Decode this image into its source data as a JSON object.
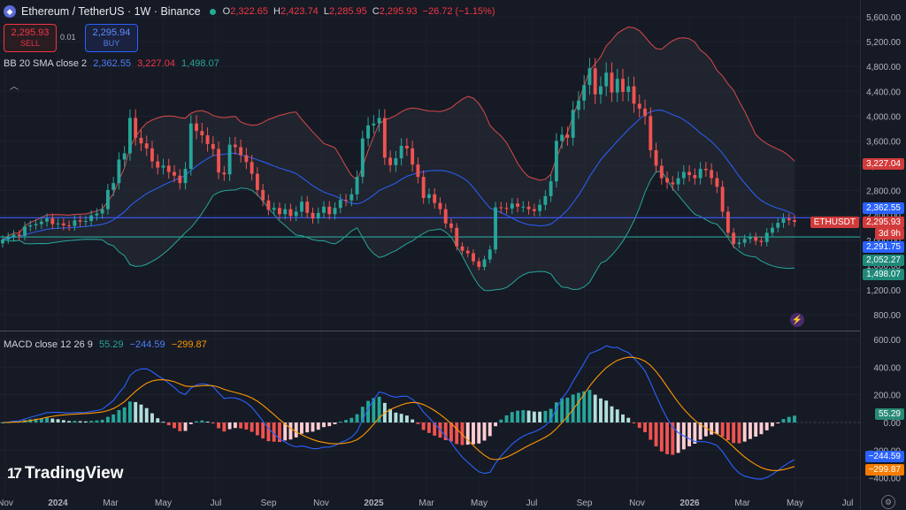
{
  "header": {
    "symbol_title": "Ethereum / TetherUS · 1W · Binance",
    "ohlc": [
      {
        "k": "O",
        "v": "2,322.65"
      },
      {
        "k": "H",
        "v": "2,423.74"
      },
      {
        "k": "L",
        "v": "2,285.95"
      },
      {
        "k": "C",
        "v": "2,295.93"
      }
    ],
    "change": "−26.72 (−1.15%)"
  },
  "trade": {
    "sell_price": "2,295.93",
    "sell_label": "SELL",
    "spread": "0.01",
    "buy_price": "2,295.94",
    "buy_label": "BUY"
  },
  "indicators": {
    "bb_name": "BB 20 SMA close 2",
    "bb_basis": "2,362.55",
    "bb_upper": "3,227.04",
    "bb_lower": "1,498.07",
    "macd_name": "MACD close 12 26 9",
    "macd_hist": "55.29",
    "macd_line": "−244.59",
    "macd_signal": "−299.87"
  },
  "price_labels": {
    "upper": "3,227.04",
    "ticker": "ETHUSDT",
    "last": "2,295.93",
    "countdown": "3d 9h",
    "basis": "2,362.55",
    "prev": "2,291.75",
    "hline": "2,052.27",
    "lower": "1,498.07"
  },
  "brand": "TradingView",
  "colors": {
    "up": "#26a69a",
    "down": "#ef5350",
    "bb_upper": "#d84a4a",
    "bb_basis": "#2962ff",
    "bb_lower": "#26a69a",
    "macd": "#2962ff",
    "signal": "#ff9800"
  },
  "chart_data": {
    "type": "candlestick",
    "interval": "1W",
    "y_axis_ticks": [
      800,
      1200,
      1600,
      2000,
      2400,
      2800,
      3200,
      3600,
      4000,
      4400,
      4800,
      5200,
      5600
    ],
    "y_axis_tick_labels": [
      "800.00",
      "1,200.00",
      "1,600.00",
      "2,000.00",
      "2,400.00",
      "2,800.00",
      "3,200.00",
      "3,600.00",
      "4,000.00",
      "4,400.00",
      "4,800.00",
      "5,200.00",
      "5,600.00"
    ],
    "x_axis_labels": [
      "Nov",
      "2024",
      "Mar",
      "May",
      "Jul",
      "Sep",
      "Nov",
      "2025",
      "Mar",
      "May",
      "Jul",
      "Sep",
      "Nov",
      "2026",
      "Mar",
      "May",
      "Jul"
    ],
    "horizontal_lines": [
      2362.55,
      2052.27
    ],
    "weekly_close": [
      2010,
      2050,
      2090,
      2070,
      2220,
      2240,
      2260,
      2300,
      2350,
      2260,
      2270,
      2240,
      2230,
      2320,
      2300,
      2310,
      2400,
      2430,
      2500,
      2810,
      2920,
      3300,
      3400,
      3970,
      3650,
      3560,
      3480,
      3270,
      3170,
      3200,
      3100,
      3040,
      2920,
      3150,
      3880,
      3760,
      3690,
      3550,
      3470,
      3090,
      3060,
      3540,
      3500,
      3370,
      3260,
      3070,
      2810,
      2640,
      2490,
      2520,
      2420,
      2500,
      2390,
      2460,
      2620,
      2440,
      2350,
      2440,
      2540,
      2420,
      2520,
      2650,
      2640,
      2740,
      3020,
      3640,
      3850,
      3880,
      3970,
      3330,
      3210,
      3320,
      3520,
      3480,
      3220,
      3020,
      2680,
      2740,
      2600,
      2500,
      2270,
      2200,
      1900,
      1830,
      1790,
      1660,
      1570,
      1690,
      1850,
      2530,
      2520,
      2510,
      2590,
      2540,
      2540,
      2500,
      2470,
      2570,
      2710,
      2950,
      3600,
      3700,
      3650,
      4100,
      4250,
      4500,
      4770,
      4350,
      4480,
      4700,
      4380,
      4600,
      4390,
      4480,
      4200,
      4120,
      4000,
      3450,
      3200,
      3000,
      2930,
      2900,
      3000,
      3100,
      3050,
      3000,
      3150,
      3130,
      3000,
      2860,
      2460,
      2120,
      1940,
      1960,
      2020,
      2050,
      1990,
      1970,
      2120,
      2200,
      2280,
      2350,
      2322.65,
      2295.93
    ],
    "bb_upper_last": 3227.04,
    "bb_basis_last": 2362.55,
    "bb_lower_last": 1498.07,
    "macd": {
      "y_axis_ticks": [
        -400,
        -200,
        0,
        200,
        400,
        600
      ],
      "y_axis_tick_labels": [
        "−400.00",
        "−200.00",
        "0.00",
        "200.00",
        "400.00",
        "600.00"
      ],
      "histogram_last": 55.29,
      "macd_last": -244.59,
      "signal_last": -299.87
    }
  }
}
